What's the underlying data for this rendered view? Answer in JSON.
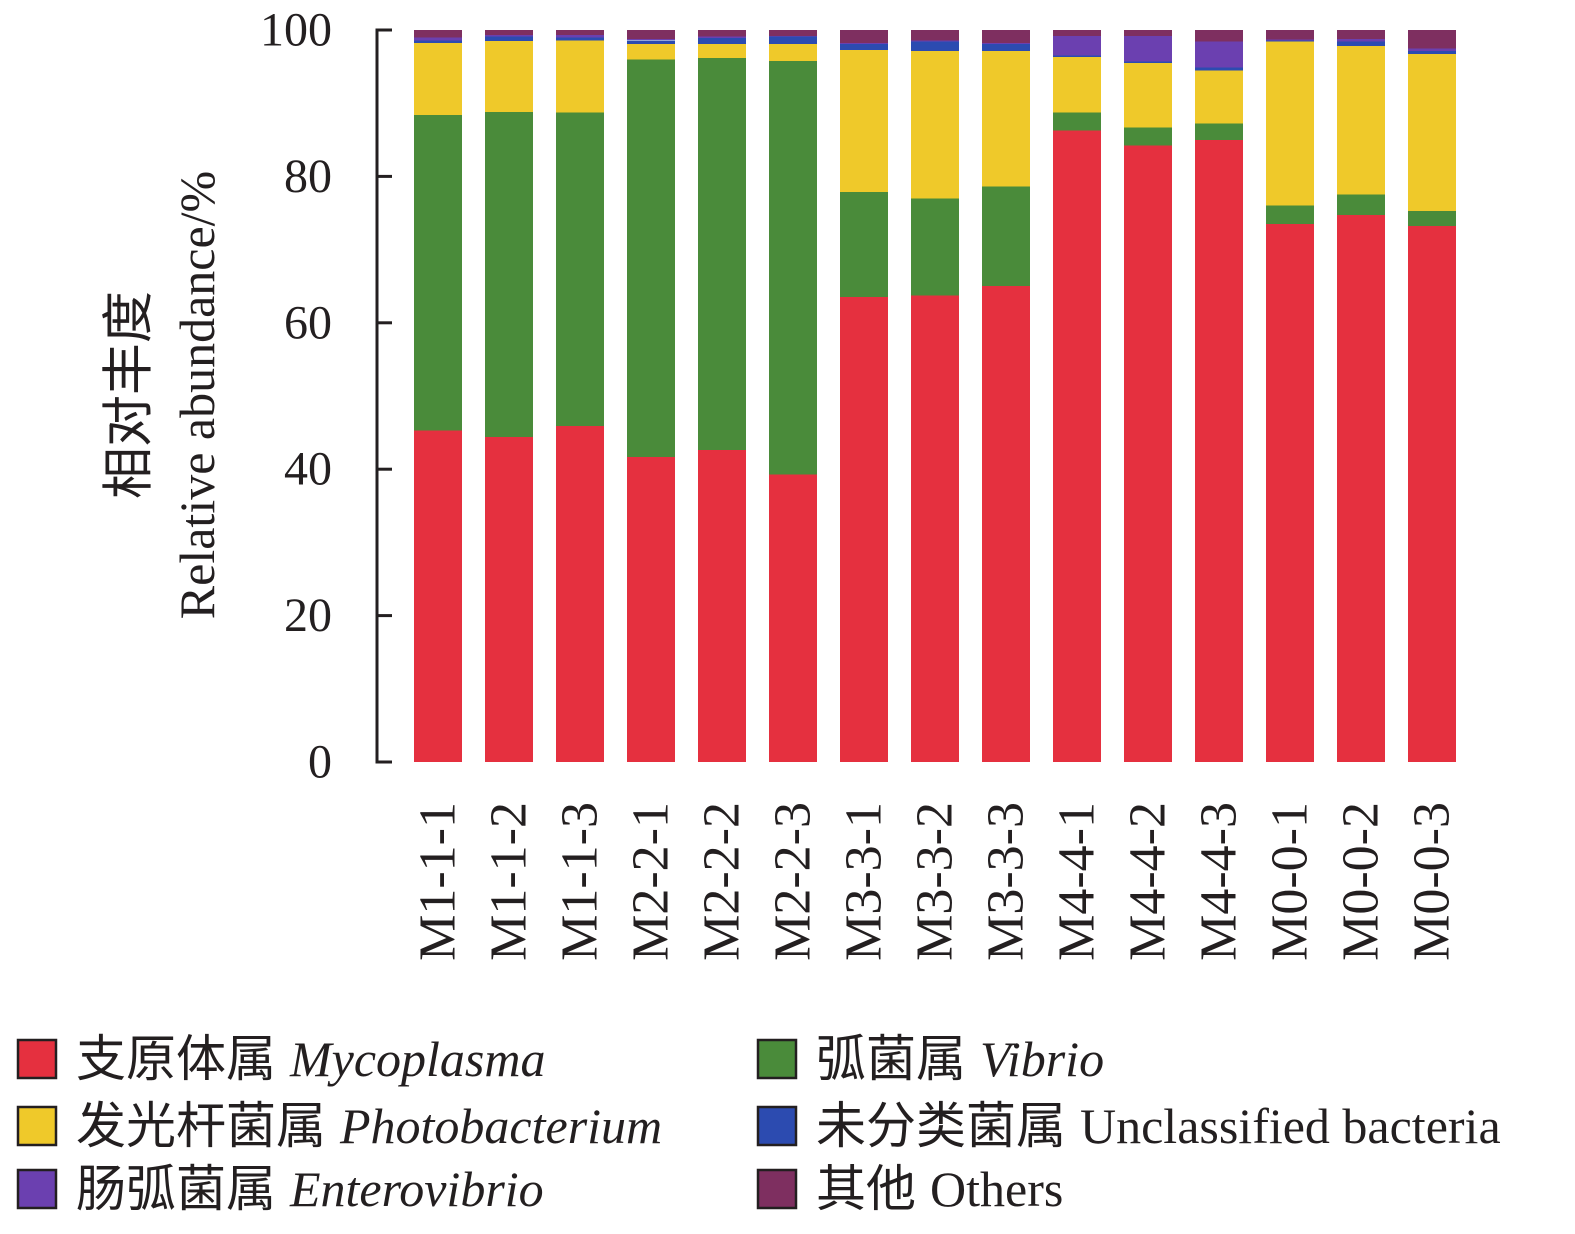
{
  "chart_data": {
    "type": "bar",
    "stacked": true,
    "title": "",
    "xlabel": "",
    "ylabel_cn": "相对丰度",
    "ylabel": "Relative abundance/%",
    "ylim": [
      0,
      100
    ],
    "yticks": [
      0,
      20,
      40,
      60,
      80,
      100
    ],
    "legend_position": "bottom",
    "categories": [
      "M1-1-1",
      "M1-1-2",
      "M1-1-3",
      "M2-2-1",
      "M2-2-2",
      "M2-2-3",
      "M3-3-1",
      "M3-3-2",
      "M3-3-3",
      "M4-4-1",
      "M4-4-2",
      "M4-4-3",
      "M0-0-1",
      "M0-0-2",
      "M0-0-3"
    ],
    "series": [
      {
        "name_cn": "支原体属",
        "name": "Mycoplasma",
        "italic": true,
        "color": "#E5303F",
        "values": [
          45.3,
          44.4,
          45.9,
          41.7,
          42.6,
          39.3,
          63.5,
          63.7,
          65.0,
          86.3,
          84.2,
          85.0,
          73.5,
          74.7,
          73.2
        ]
      },
      {
        "name_cn": "弧菌属",
        "name": "Vibrio",
        "italic": true,
        "color": "#4A8B3A",
        "values": [
          43.1,
          44.4,
          42.8,
          54.3,
          53.6,
          56.5,
          14.4,
          13.3,
          13.6,
          2.4,
          2.5,
          2.2,
          2.5,
          2.8,
          2.1
        ]
      },
      {
        "name_cn": "发光杆菌属",
        "name": "Photobacterium",
        "italic": true,
        "color": "#EFC92A",
        "values": [
          9.8,
          9.7,
          9.9,
          2.1,
          1.9,
          2.3,
          19.4,
          20.1,
          18.5,
          7.6,
          8.8,
          7.3,
          22.4,
          20.3,
          21.4
        ]
      },
      {
        "name_cn": "未分类菌属",
        "name": "Unclassified bacteria",
        "italic": false,
        "color": "#2C4BB0",
        "values": [
          0.4,
          0.6,
          0.4,
          0.5,
          0.8,
          1.0,
          0.8,
          1.3,
          1.0,
          0.2,
          0.2,
          0.4,
          0.2,
          0.6,
          0.4
        ]
      },
      {
        "name_cn": "肠弧菌属",
        "name": "Enterovibrio",
        "italic": true,
        "color": "#6B40B0",
        "values": [
          0.4,
          0.2,
          0.3,
          0.2,
          0.2,
          0.1,
          0.1,
          0.2,
          0.1,
          2.7,
          3.5,
          3.5,
          0.1,
          0.4,
          0.4
        ]
      },
      {
        "name_cn": "其他",
        "name": "Others",
        "italic": false,
        "color": "#7E2F60",
        "values": [
          1.0,
          0.7,
          0.7,
          1.2,
          0.9,
          0.8,
          1.8,
          1.4,
          1.8,
          0.8,
          0.8,
          1.6,
          1.3,
          1.2,
          2.5
        ]
      }
    ]
  }
}
